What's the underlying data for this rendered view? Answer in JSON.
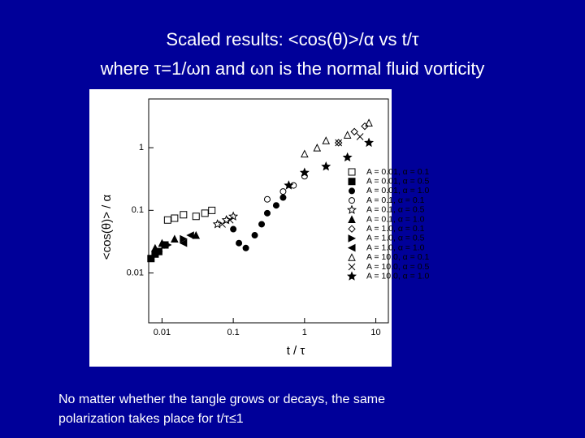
{
  "title_lines": [
    "Scaled results: <cos(θ)>/α vs t/τ",
    "where τ=1/ωn and ωn is the normal fluid vorticity"
  ],
  "caption_lines": [
    "No matter whether the tangle grows or decays, the same",
    "polarization takes place for t/τ≤1"
  ],
  "chart_data": {
    "type": "scatter",
    "xlabel": "t / τ",
    "ylabel": "<cos(θ)> / α",
    "xscale": "log",
    "yscale": "log",
    "xlim": [
      0.0065,
      15
    ],
    "ylim": [
      0.0016,
      6
    ],
    "xticks": [
      0.01,
      0.1,
      1,
      10
    ],
    "yticks": [
      0.01,
      0.1,
      1
    ],
    "legend": "right",
    "series": [
      {
        "name": "A = 0.01,  α = 0.1",
        "color": "#000",
        "marker": "square-open",
        "x": [
          0.012,
          0.015,
          0.02,
          0.03,
          0.04,
          0.05
        ],
        "values": [
          0.07,
          0.075,
          0.085,
          0.08,
          0.09,
          0.1
        ]
      },
      {
        "name": "A = 0.01,  α = 0.5",
        "color": "#000",
        "marker": "square",
        "x": [
          0.007,
          0.008,
          0.009,
          0.011
        ],
        "values": [
          0.017,
          0.02,
          0.022,
          0.028
        ]
      },
      {
        "name": "A = 0.01,  α = 1.0",
        "color": "#000",
        "marker": "circle",
        "x": [
          0.1,
          0.12,
          0.15,
          0.2,
          0.25,
          0.3,
          0.4,
          0.5
        ],
        "values": [
          0.05,
          0.03,
          0.025,
          0.04,
          0.06,
          0.09,
          0.12,
          0.16
        ]
      },
      {
        "name": "A = 0.1,  α = 0.1",
        "color": "#000",
        "marker": "circle-open",
        "x": [
          0.3,
          0.5,
          0.7,
          1
        ],
        "values": [
          0.15,
          0.2,
          0.25,
          0.35
        ]
      },
      {
        "name": "A = 0.1,  α = 0.5",
        "color": "#000",
        "marker": "star-open",
        "x": [
          0.06,
          0.08,
          0.1
        ],
        "values": [
          0.06,
          0.07,
          0.08
        ]
      },
      {
        "name": "A = 0.1,  α = 1.0",
        "color": "#000",
        "marker": "triangle",
        "x": [
          0.008,
          0.01,
          0.015,
          0.03
        ],
        "values": [
          0.025,
          0.03,
          0.035,
          0.04
        ]
      },
      {
        "name": "A = 1.0,  α = 0.1",
        "color": "#000",
        "marker": "diamond-open",
        "x": [
          3,
          5,
          7
        ],
        "values": [
          1.2,
          1.8,
          2.2
        ]
      },
      {
        "name": "A = 1.0,  α = 0.5",
        "color": "#000",
        "marker": "triangle-right",
        "x": [
          0.009,
          0.012,
          0.02
        ],
        "values": [
          0.022,
          0.028,
          0.035
        ]
      },
      {
        "name": "A = 1.0,  α = 1.0",
        "color": "#000",
        "marker": "triangle-left",
        "x": [
          0.02,
          0.025
        ],
        "values": [
          0.03,
          0.04
        ]
      },
      {
        "name": "A = 10.0,  α = 0.1",
        "color": "#000",
        "marker": "triangle-open",
        "x": [
          1,
          1.5,
          2,
          4,
          8
        ],
        "values": [
          0.8,
          1,
          1.3,
          1.6,
          2.5
        ]
      },
      {
        "name": "A = 10.0,  α = 0.5",
        "color": "#000",
        "marker": "cross",
        "x": [
          0.07,
          0.09,
          3,
          6
        ],
        "values": [
          0.06,
          0.07,
          1.2,
          1.5
        ]
      },
      {
        "name": "A = 10.0,  α = 1.0",
        "color": "#000",
        "marker": "star",
        "x": [
          0.6,
          1,
          2,
          4,
          8
        ],
        "values": [
          0.25,
          0.4,
          0.5,
          0.7,
          1.2
        ]
      }
    ]
  }
}
